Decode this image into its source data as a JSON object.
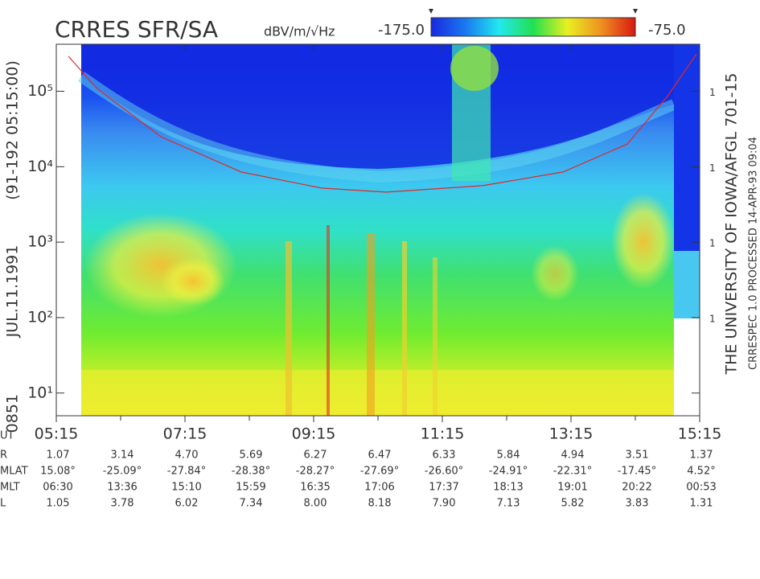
{
  "title": "CRRES SFR/SA",
  "chart_data": {
    "type": "spectrogram",
    "units": "dBV/m/√Hz",
    "colorbar_ticks": [
      {
        "value": -175,
        "label": "-175.0"
      },
      {
        "value": -75,
        "label": "-75.0"
      }
    ],
    "colorbar_colors": [
      "#1828e0",
      "#1a78f0",
      "#22e8f0",
      "#22e050",
      "#e8f020",
      "#f09020",
      "#d81810"
    ],
    "xlim": [
      5.25,
      15.25
    ],
    "xticks": [
      {
        "value": 5.25,
        "label": "05:15"
      },
      {
        "value": 7.25,
        "label": "07:15"
      },
      {
        "value": 9.25,
        "label": "09:15"
      },
      {
        "value": 11.25,
        "label": "11:15"
      },
      {
        "value": 13.25,
        "label": "13:15"
      },
      {
        "value": 15.25,
        "label": "15:15"
      }
    ],
    "ylim": [
      5,
      420000
    ],
    "log_y": true,
    "yticks": [
      {
        "value": 10,
        "label": "10¹"
      },
      {
        "value": 100,
        "label": "10²"
      },
      {
        "value": 1000,
        "label": "10³"
      },
      {
        "value": 10000,
        "label": "10⁴"
      },
      {
        "value": 100000,
        "label": "10⁵"
      }
    ],
    "y2_tick_labels": [
      "1",
      "1",
      "1",
      "1"
    ],
    "series": [
      {
        "color": "#e02828",
        "x": [
          5.44,
          5.875,
          6.875,
          8.125,
          9.375,
          10.375,
          11.875,
          13.125,
          14.125,
          14.75,
          15.2
        ],
        "values": [
          290000,
          110000,
          25000,
          8500,
          5200,
          4600,
          5600,
          8500,
          20000,
          86000,
          310000
        ]
      }
    ],
    "left_labels": [
      "0851",
      "JUL.11.1991",
      "(91-192 05:15:00)"
    ],
    "right_label": "THE UNIVERSITY OF IOWA/AFGL 701-15",
    "right_sublabel": "CRRESPEC 1.0   PROCESSED 14-APR-93  09:04"
  },
  "ephemeris": {
    "time_label": "UT",
    "rows": [
      {
        "label": "R",
        "values": [
          "1.07",
          "3.14",
          "4.70",
          "5.69",
          "6.27",
          "6.47",
          "6.33",
          "5.84",
          "4.94",
          "3.51",
          "1.37"
        ]
      },
      {
        "label": "MLAT",
        "values": [
          "15.08°",
          "-25.09°",
          "-27.84°",
          "-28.38°",
          "-28.27°",
          "-27.69°",
          "-26.60°",
          "-24.91°",
          "-22.31°",
          "-17.45°",
          "4.52°"
        ]
      },
      {
        "label": "MLT",
        "values": [
          "06:30",
          "13:36",
          "15:10",
          "15:59",
          "16:35",
          "17:06",
          "17:37",
          "18:13",
          "19:01",
          "20:22",
          "00:53"
        ]
      },
      {
        "label": "L",
        "values": [
          "1.05",
          "3.78",
          "6.02",
          "7.34",
          "8.00",
          "8.18",
          "7.90",
          "7.13",
          "5.82",
          "3.83",
          "1.31"
        ]
      }
    ]
  }
}
